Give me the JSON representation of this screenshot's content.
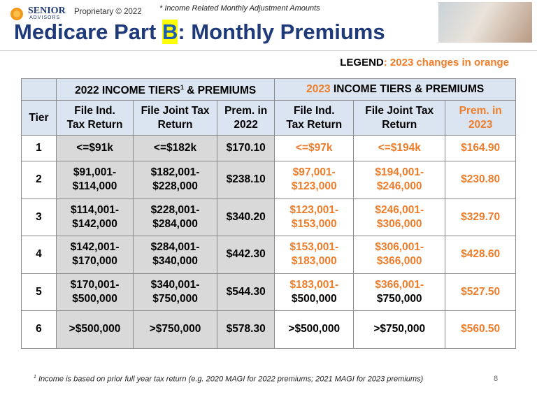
{
  "header": {
    "logo_top": "SENIOR",
    "logo_bottom": "ADVISORS",
    "proprietary": "Proprietary © 2022",
    "note": "* Income Related Monthly Adjustment Amounts",
    "title": {
      "before": "Medicare Part ",
      "highlight": "B",
      "after": ": Monthly Premiums"
    }
  },
  "legend": {
    "label": "LEGEND",
    "text": ": 2023 changes in orange"
  },
  "table": {
    "groups": [
      {
        "text": "2022 INCOME TIERS",
        "sup": "1",
        "after": " & PREMIUMS"
      },
      {
        "year": "2023",
        "after": " INCOME TIERS & PREMIUMS"
      }
    ],
    "columns": [
      [
        "Tier"
      ],
      [
        "File Ind.",
        "Tax Return"
      ],
      [
        "File Joint Tax",
        "Return"
      ],
      [
        "Prem. in",
        "2022"
      ],
      [
        "File Ind.",
        "Tax Return"
      ],
      [
        "File Joint Tax",
        "Return"
      ],
      [
        "Prem. in",
        "2023"
      ]
    ],
    "rows": [
      [
        [
          "1"
        ],
        [
          "<=$91k"
        ],
        [
          "<=$182k"
        ],
        [
          "$170.10"
        ],
        [
          "<=$97k"
        ],
        [
          "<=$194k"
        ],
        [
          "$164.90"
        ]
      ],
      [
        [
          "2"
        ],
        [
          "$91,001-",
          "$114,000"
        ],
        [
          "$182,001-",
          "$228,000"
        ],
        [
          "$238.10"
        ],
        [
          "$97,001-",
          "$123,000"
        ],
        [
          "$194,001-",
          "$246,000"
        ],
        [
          "$230.80"
        ]
      ],
      [
        [
          "3"
        ],
        [
          "$114,001-",
          "$142,000"
        ],
        [
          "$228,001-",
          "$284,000"
        ],
        [
          "$340.20"
        ],
        [
          "$123,001-",
          "$153,000"
        ],
        [
          "$246,001-",
          "$306,000"
        ],
        [
          "$329.70"
        ]
      ],
      [
        [
          "4"
        ],
        [
          "$142,001-",
          "$170,000"
        ],
        [
          "$284,001-",
          "$340,000"
        ],
        [
          "$442.30"
        ],
        [
          "$153,001-",
          "$183,000"
        ],
        [
          "$306,001-",
          "$366,000"
        ],
        [
          "$428.60"
        ]
      ],
      [
        [
          "5"
        ],
        [
          "$170,001-",
          "$500,000"
        ],
        [
          "$340,001-",
          "$750,000"
        ],
        [
          "$544.30"
        ],
        [
          "$183,001-",
          "$500,000"
        ],
        [
          "$366,001-",
          "$750,000"
        ],
        [
          "$527.50"
        ]
      ],
      [
        [
          "6"
        ],
        [
          ">$500,000"
        ],
        [
          ">$750,000"
        ],
        [
          "$578.30"
        ],
        [
          ">$500,000"
        ],
        [
          ">$750,000"
        ],
        [
          "$560.50"
        ]
      ]
    ]
  },
  "footnote": {
    "sup": "1",
    "text": "Income is based on prior full year tax return (e.g. 2020 MAGI for 2022 premiums; 2021 MAGI for 2023 premiums)",
    "page": "8"
  }
}
